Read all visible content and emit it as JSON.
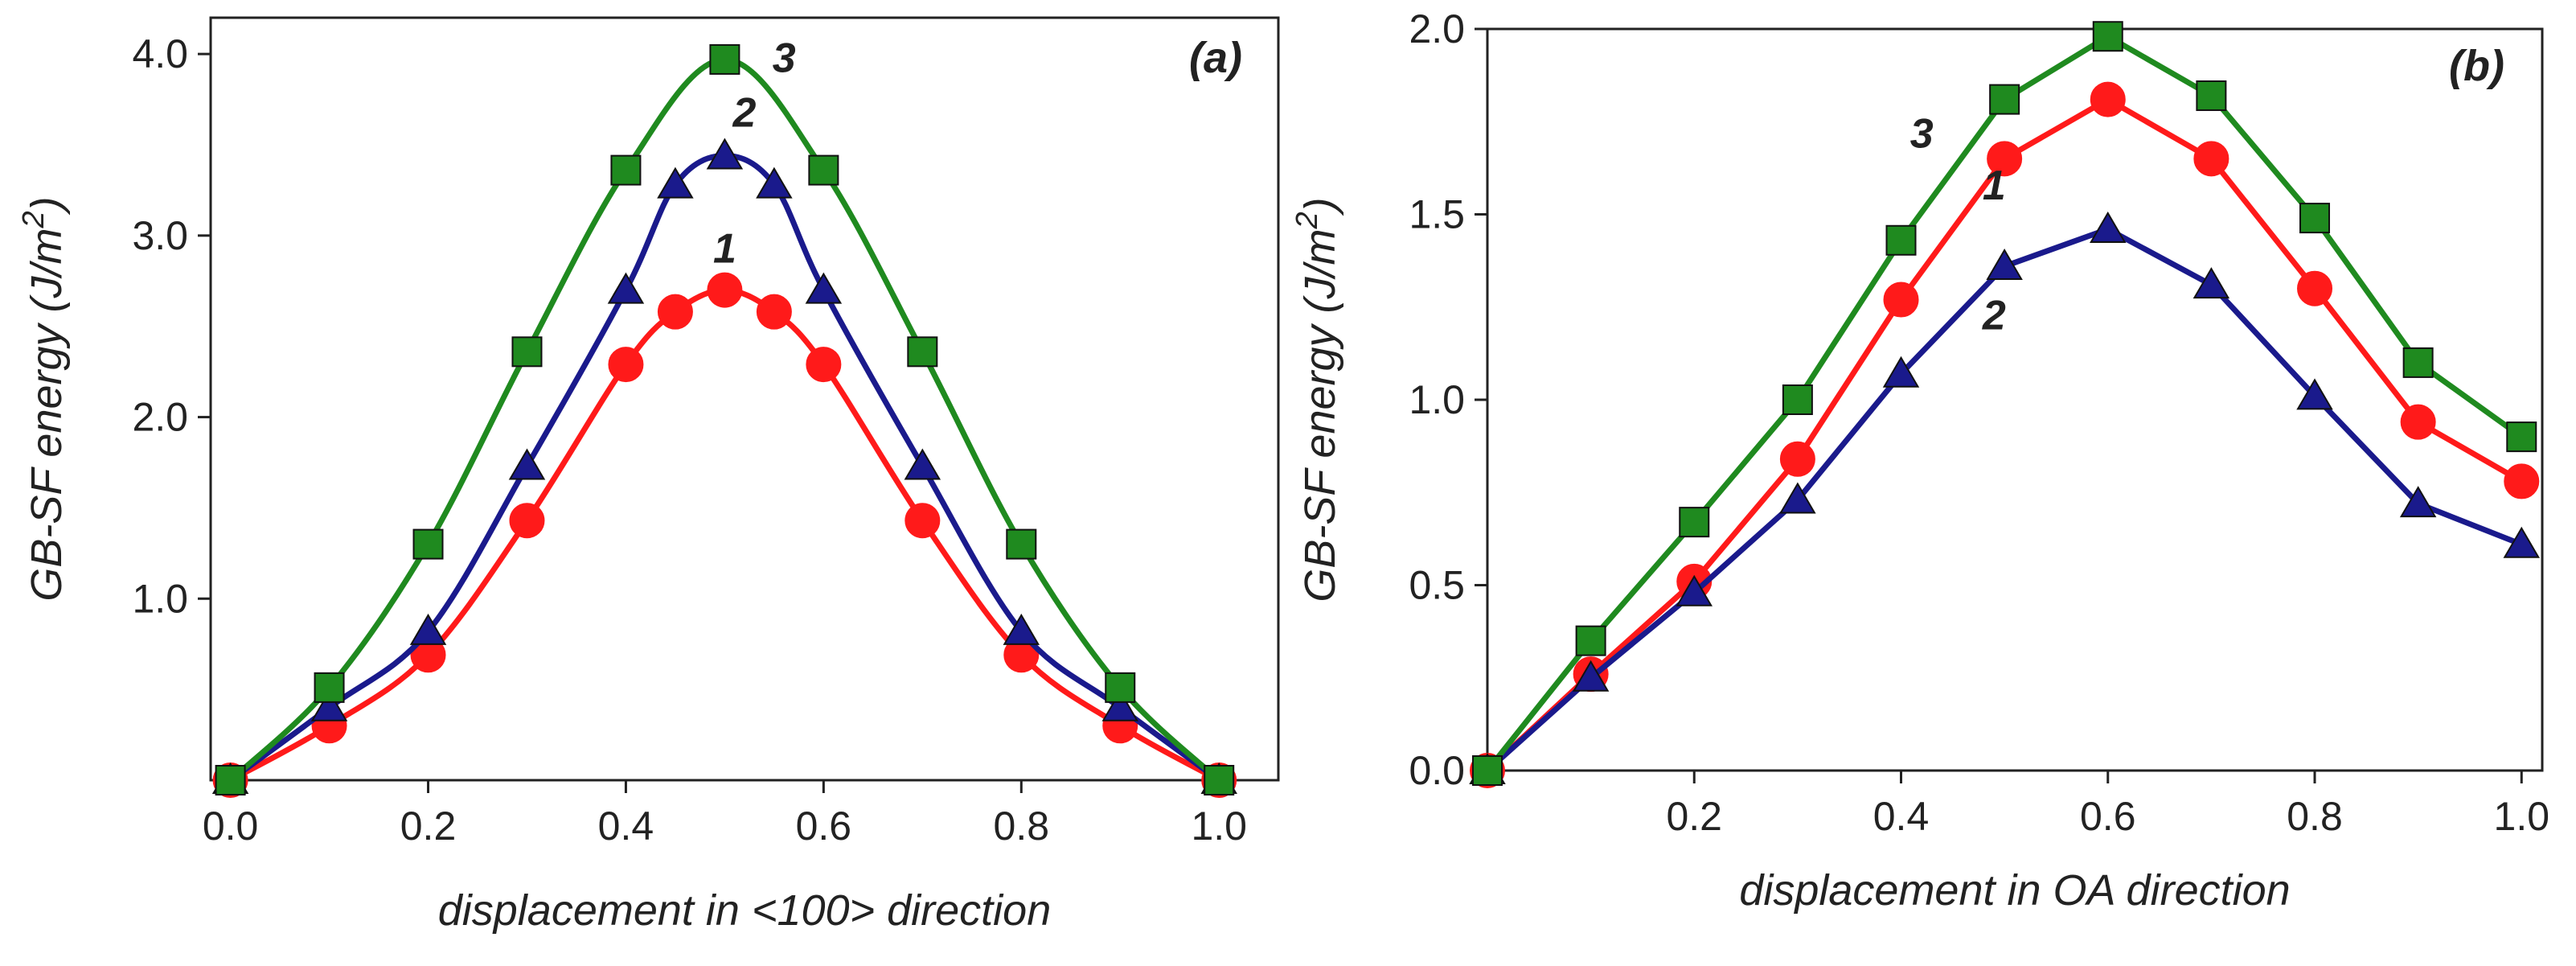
{
  "chart_data": [
    {
      "type": "line",
      "panel_label": "(a)",
      "xlabel": "displacement in <100> direction",
      "ylabel_main": "GB-SF energy (J/m",
      "ylabel_sup": "2",
      "ylabel_close": ")",
      "xlim": [
        -0.02,
        1.06
      ],
      "ylim": [
        0,
        4.2
      ],
      "x_ticks": [
        {
          "value": 0.0,
          "label": "0.0"
        },
        {
          "value": 0.2,
          "label": "0.2"
        },
        {
          "value": 0.4,
          "label": "0.4"
        },
        {
          "value": 0.6,
          "label": "0.6"
        },
        {
          "value": 0.8,
          "label": "0.8"
        },
        {
          "value": 1.0,
          "label": "1.0"
        }
      ],
      "y_ticks": [
        {
          "value": 1.0,
          "label": "1.0"
        },
        {
          "value": 2.0,
          "label": "2.0"
        },
        {
          "value": 3.0,
          "label": "3.0"
        },
        {
          "value": 4.0,
          "label": "4.0"
        }
      ],
      "smooth": true,
      "series": [
        {
          "name": "1",
          "label": "1",
          "color": "#ff1a1a",
          "marker": "circle",
          "x": [
            0.0,
            0.1,
            0.2,
            0.3,
            0.4,
            0.45,
            0.5,
            0.55,
            0.6,
            0.7,
            0.8,
            0.9,
            1.0
          ],
          "y": [
            0.0,
            0.3,
            0.69,
            1.43,
            2.29,
            2.58,
            2.7,
            2.58,
            2.29,
            1.43,
            0.69,
            0.3,
            0.0
          ],
          "label_x": 0.5,
          "label_y": 2.85
        },
        {
          "name": "2",
          "label": "2",
          "color": "#1a1a8c",
          "marker": "triangle",
          "x": [
            0.0,
            0.1,
            0.2,
            0.3,
            0.4,
            0.45,
            0.5,
            0.55,
            0.6,
            0.7,
            0.8,
            0.9,
            1.0
          ],
          "y": [
            0.0,
            0.4,
            0.82,
            1.73,
            2.7,
            3.28,
            3.44,
            3.28,
            2.7,
            1.73,
            0.82,
            0.4,
            0.0
          ],
          "label_x": 0.52,
          "label_y": 3.6
        },
        {
          "name": "3",
          "label": "3",
          "color": "#1f8a1f",
          "marker": "square",
          "x": [
            0.0,
            0.1,
            0.2,
            0.3,
            0.4,
            0.5,
            0.6,
            0.7,
            0.8,
            0.9,
            1.0
          ],
          "y": [
            0.0,
            0.51,
            1.3,
            2.36,
            3.36,
            3.97,
            3.36,
            2.36,
            1.3,
            0.51,
            0.0
          ],
          "label_x": 0.56,
          "label_y": 3.9
        }
      ]
    },
    {
      "type": "line",
      "panel_label": "(b)",
      "xlabel": "displacement in OA direction",
      "ylabel_main": "GB-SF energy (J/m",
      "ylabel_sup": "2",
      "ylabel_close": ")",
      "xlim": [
        0.0,
        1.02
      ],
      "ylim": [
        0,
        2.0
      ],
      "x_ticks": [
        {
          "value": 0.2,
          "label": "0.2"
        },
        {
          "value": 0.4,
          "label": "0.4"
        },
        {
          "value": 0.6,
          "label": "0.6"
        },
        {
          "value": 0.8,
          "label": "0.8"
        },
        {
          "value": 1.0,
          "label": "1.0"
        }
      ],
      "y_ticks": [
        {
          "value": 0.0,
          "label": "0.0"
        },
        {
          "value": 0.5,
          "label": "0.5"
        },
        {
          "value": 1.0,
          "label": "1.0"
        },
        {
          "value": 1.5,
          "label": "1.5"
        },
        {
          "value": 2.0,
          "label": "2.0"
        }
      ],
      "smooth": false,
      "series": [
        {
          "name": "1",
          "label": "1",
          "color": "#ff1a1a",
          "marker": "circle",
          "x": [
            0.0,
            0.1,
            0.2,
            0.3,
            0.4,
            0.5,
            0.6,
            0.7,
            0.8,
            0.9,
            1.0
          ],
          "y": [
            0.0,
            0.26,
            0.51,
            0.84,
            1.27,
            1.65,
            1.81,
            1.65,
            1.3,
            0.94,
            0.78
          ],
          "label_x": 0.49,
          "label_y": 1.54
        },
        {
          "name": "2",
          "label": "2",
          "color": "#1a1a8c",
          "marker": "triangle",
          "x": [
            0.0,
            0.1,
            0.2,
            0.3,
            0.4,
            0.5,
            0.6,
            0.7,
            0.8,
            0.9,
            1.0
          ],
          "y": [
            0.0,
            0.25,
            0.48,
            0.73,
            1.07,
            1.36,
            1.46,
            1.31,
            1.01,
            0.72,
            0.61
          ],
          "label_x": 0.49,
          "label_y": 1.19
        },
        {
          "name": "3",
          "label": "3",
          "color": "#1f8a1f",
          "marker": "square",
          "x": [
            0.0,
            0.1,
            0.2,
            0.3,
            0.4,
            0.5,
            0.6,
            0.7,
            0.8,
            0.9,
            1.0
          ],
          "y": [
            0.0,
            0.35,
            0.67,
            1.0,
            1.43,
            1.81,
            1.98,
            1.82,
            1.49,
            1.1,
            0.9
          ],
          "label_x": 0.42,
          "label_y": 1.68
        }
      ]
    }
  ]
}
